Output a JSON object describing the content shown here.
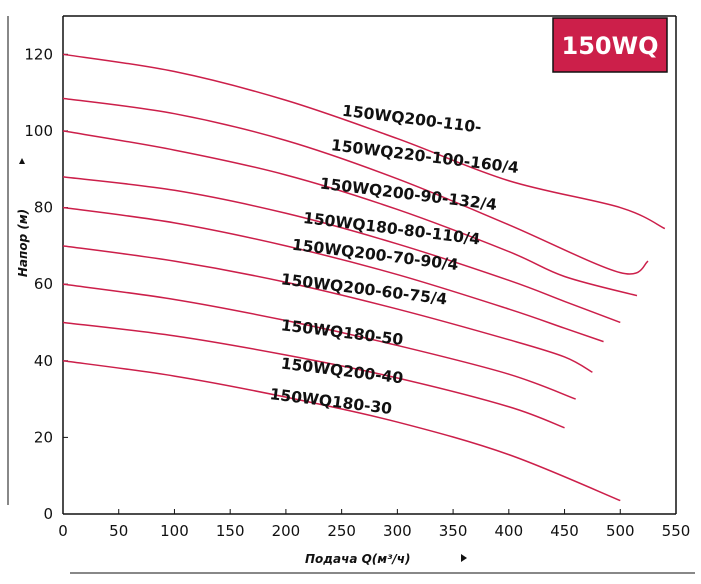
{
  "chart_data": {
    "type": "line",
    "badge": "150WQ",
    "xlabel": "Подача Q(м³/ч)",
    "ylabel": "Напор (м)",
    "xlim": [
      0,
      550
    ],
    "ylim": [
      0,
      130
    ],
    "x_ticks": [
      0,
      50,
      100,
      150,
      200,
      250,
      300,
      350,
      400,
      450,
      500,
      550
    ],
    "y_ticks": [
      0,
      20,
      40,
      60,
      80,
      100,
      120
    ],
    "grid": false,
    "series_color": "#cc1f4a",
    "badge_color": "#cc1f4a",
    "series": [
      {
        "name": "150WQ200-110-",
        "x": [
          0,
          100,
          200,
          300,
          400,
          500,
          540
        ],
        "y": [
          120,
          115.5,
          108,
          98,
          87,
          80,
          74.5
        ],
        "label_at": [
          250,
          104
        ]
      },
      {
        "name": "150WQ220-100-160/4",
        "x": [
          0,
          100,
          200,
          300,
          400,
          500,
          525
        ],
        "y": [
          108.5,
          104.5,
          97.5,
          87.5,
          75.5,
          63,
          66
        ],
        "label_at": [
          240,
          95
        ]
      },
      {
        "name": "150WQ200-90-132/4",
        "x": [
          0,
          100,
          200,
          300,
          400,
          450,
          515
        ],
        "y": [
          100,
          95,
          88.5,
          79.5,
          68.5,
          62,
          57
        ],
        "label_at": [
          230,
          85
        ]
      },
      {
        "name": "150WQ180-80-110/4",
        "x": [
          0,
          100,
          200,
          300,
          400,
          450,
          500
        ],
        "y": [
          88,
          84.5,
          78.5,
          70.5,
          61,
          55.5,
          50
        ],
        "label_at": [
          215,
          76
        ]
      },
      {
        "name": "150WQ200-70-90/4",
        "x": [
          0,
          100,
          200,
          300,
          400,
          450,
          485
        ],
        "y": [
          80,
          76,
          70,
          62.5,
          53.5,
          48.5,
          45
        ],
        "label_at": [
          205,
          69
        ]
      },
      {
        "name": "150WQ200-60-75/4",
        "x": [
          0,
          100,
          200,
          300,
          400,
          450,
          475
        ],
        "y": [
          70,
          66,
          60.5,
          53.5,
          45.5,
          41,
          37
        ],
        "label_at": [
          195,
          60
        ]
      },
      {
        "name": "150WQ180-50",
        "x": [
          0,
          100,
          200,
          300,
          400,
          460
        ],
        "y": [
          60,
          56,
          50.5,
          44,
          36.5,
          30
        ],
        "label_at": [
          195,
          48
        ]
      },
      {
        "name": "150WQ200-40",
        "x": [
          0,
          100,
          200,
          300,
          400,
          450
        ],
        "y": [
          50,
          46.5,
          41.5,
          35.5,
          28,
          22.5
        ],
        "label_at": [
          195,
          38
        ]
      },
      {
        "name": "150WQ180-30",
        "x": [
          0,
          100,
          200,
          300,
          400,
          500
        ],
        "y": [
          40,
          36,
          30.5,
          24,
          15.5,
          3.5
        ],
        "label_at": [
          185,
          30
        ]
      }
    ]
  }
}
